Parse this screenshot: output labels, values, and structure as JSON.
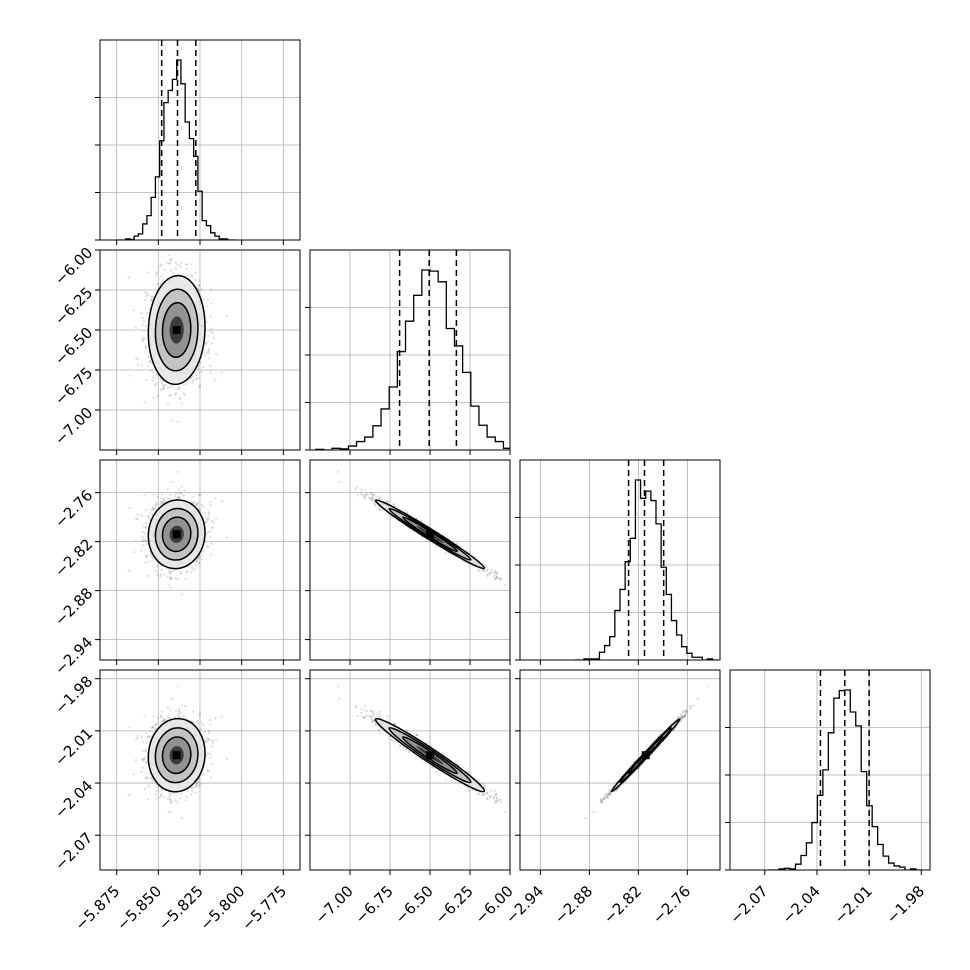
{
  "chart_data": {
    "type": "corner",
    "title": "",
    "params": [
      {
        "index": 0,
        "range": [
          -5.885,
          -5.765
        ],
        "ticks": [
          -5.875,
          -5.85,
          -5.825,
          -5.8,
          -5.775
        ],
        "tick_labels": [
          "−5.875",
          "−5.850",
          "−5.825",
          "−5.800",
          "−5.775"
        ],
        "quantiles": [
          -5.848,
          -5.8385,
          -5.8275
        ],
        "mean": -5.839,
        "sd": 0.0085
      },
      {
        "index": 1,
        "range": [
          -7.25,
          -6.0
        ],
        "ticks": [
          -7.0,
          -6.75,
          -6.5,
          -6.25,
          -6.0
        ],
        "tick_labels": [
          "−7.00",
          "−6.75",
          "−6.50",
          "−6.25",
          "−6.00"
        ],
        "quantiles": [
          -6.69,
          -6.505,
          -6.335
        ],
        "mean": -6.5,
        "sd": 0.17
      },
      {
        "index": 2,
        "range": [
          -2.965,
          -2.72
        ],
        "ticks": [
          -2.94,
          -2.88,
          -2.82,
          -2.76
        ],
        "tick_labels": [
          "−2.94",
          "−2.88",
          "−2.82",
          "−2.76"
        ],
        "quantiles": [
          -2.832,
          -2.8125,
          -2.789
        ],
        "mean": -2.811,
        "sd": 0.021
      },
      {
        "index": 3,
        "range": [
          -2.09,
          -1.975
        ],
        "ticks": [
          -2.07,
          -2.04,
          -2.01,
          -1.98
        ],
        "tick_labels": [
          "−2.07",
          "−2.04",
          "−2.01",
          "−1.98"
        ],
        "quantiles": [
          -2.038,
          -2.024,
          -2.01
        ],
        "mean": -2.024,
        "sd": 0.0105
      }
    ],
    "correlations": {
      "1-0": 0.05,
      "2-0": 0.05,
      "2-1": -0.985,
      "3-0": 0.05,
      "3-1": -0.975,
      "3-2": 0.995
    },
    "histograms": "1-D marginal histograms with dashed quantile lines on the diagonal",
    "grid": true
  }
}
